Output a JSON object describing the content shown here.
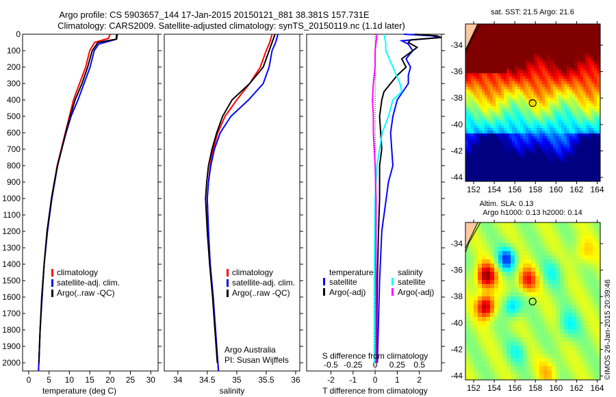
{
  "title_line1": "Argo profile: CS 5903657_144 17-Jan-2015 20150121_881 38.381S 157.731E",
  "title_line2": "Climatology: CARS2009. Satellite-adjusted climatology: synTS_20150119.nc (1.1d later)",
  "credit": "©IMOS 26-Jan-2015 20:39:46",
  "colors": {
    "climatology": "#ff0000",
    "satellite": "#0000ff",
    "argo": "#000000",
    "sal_satellite": "#00ffff",
    "sal_argo": "#ff00ff"
  },
  "chart_data": [
    {
      "type": "line",
      "id": "temperature",
      "xlabel": "temperature (deg C)",
      "ylabel": "",
      "xlim": [
        -1.5,
        31.8
      ],
      "ylim": [
        2050,
        0
      ],
      "xticks": [
        0,
        5,
        10,
        15,
        20,
        25,
        30
      ],
      "yticks": [
        0,
        100,
        200,
        300,
        400,
        500,
        600,
        700,
        800,
        900,
        1000,
        1100,
        1200,
        1300,
        1400,
        1500,
        1600,
        1700,
        1800,
        1900,
        2000
      ],
      "legend": [
        "climatology",
        "satellite-adj. clim.",
        "Argo(..raw -QC)"
      ],
      "legend_placement": "lower-center",
      "series": [
        {
          "name": "climatology",
          "color": "#ff0000",
          "depth": [
            0,
            25,
            50,
            100,
            200,
            300,
            400,
            500,
            600,
            700,
            800,
            900,
            1000,
            1200,
            1400,
            1600,
            1800,
            2000,
            2050
          ],
          "values": [
            20,
            19.6,
            16.2,
            15,
            14,
            12.5,
            11,
            10,
            9,
            8,
            7,
            6.3,
            5.6,
            4.6,
            3.8,
            3.3,
            2.8,
            2.5,
            2.4
          ]
        },
        {
          "name": "satellite-adj. clim.",
          "color": "#0000ff",
          "depth": [
            0,
            30,
            60,
            100,
            200,
            300,
            400,
            500,
            600,
            700,
            800,
            900,
            1000,
            1200,
            1400,
            1600,
            1800,
            2000,
            2050
          ],
          "values": [
            21.8,
            21.6,
            17.2,
            16.1,
            15.1,
            13.6,
            12.1,
            10.4,
            9.2,
            8.1,
            7.1,
            6.4,
            5.7,
            4.6,
            3.8,
            3.3,
            2.8,
            2.5,
            2.4
          ]
        },
        {
          "name": "Argo(..raw -QC)",
          "color": "#000000",
          "depth": [
            0,
            30,
            50,
            100,
            200,
            300,
            400,
            500,
            600,
            700,
            800,
            900,
            1000,
            1200,
            1400,
            1600,
            1800,
            2000
          ],
          "values": [
            21.6,
            21.5,
            17,
            15.6,
            14.5,
            13.1,
            11.4,
            10.2,
            9.1,
            8.1,
            7.1,
            6.3,
            5.6,
            4.5,
            3.8,
            3.2,
            2.8,
            2.5
          ]
        }
      ]
    },
    {
      "type": "line",
      "id": "salinity",
      "xlabel": "salinity",
      "xlim": [
        33.77,
        36.07
      ],
      "ylim": [
        2050,
        0
      ],
      "xticks": [
        34,
        34.5,
        35,
        35.5,
        36
      ],
      "legend": [
        "climatology",
        "satellite-adj. clim.",
        "Argo(..raw -QC)"
      ],
      "legend_placement": "lower-center",
      "annotation": [
        "Argo Australia",
        "PI: Susan Wijffels"
      ],
      "series": [
        {
          "name": "climatology",
          "color": "#ff0000",
          "depth": [
            0,
            50,
            100,
            200,
            300,
            400,
            500,
            600,
            700,
            800,
            900,
            1000,
            1200,
            1400,
            1600,
            1800,
            2000,
            2050
          ],
          "values": [
            35.6,
            35.56,
            35.5,
            35.4,
            35.22,
            35.0,
            34.8,
            34.68,
            34.6,
            34.55,
            34.52,
            34.5,
            34.52,
            34.55,
            34.6,
            34.64,
            34.68,
            34.69
          ]
        },
        {
          "name": "satellite-adj. clim.",
          "color": "#0000ff",
          "depth": [
            0,
            50,
            100,
            200,
            300,
            400,
            500,
            600,
            700,
            800,
            900,
            1000,
            1200,
            1400,
            1600,
            1800,
            2000,
            2050
          ],
          "values": [
            35.7,
            35.66,
            35.6,
            35.55,
            35.45,
            35.2,
            34.9,
            34.72,
            34.62,
            34.56,
            34.52,
            34.5,
            34.52,
            34.55,
            34.6,
            34.64,
            34.68,
            34.69
          ]
        },
        {
          "name": "Argo(..raw -QC)",
          "color": "#000000",
          "depth": [
            0,
            50,
            100,
            200,
            300,
            400,
            500,
            600,
            700,
            800,
            900,
            1000,
            1200,
            1400,
            1600,
            1800,
            2000
          ],
          "values": [
            35.65,
            35.6,
            35.55,
            35.45,
            35.22,
            34.92,
            34.76,
            34.66,
            34.58,
            34.52,
            34.49,
            34.47,
            34.5,
            34.54,
            34.59,
            34.63,
            34.67
          ]
        }
      ]
    },
    {
      "type": "line",
      "id": "differences",
      "xlabel": "T difference from climatology",
      "x2label": "S difference from climatology",
      "xlim": [
        -3.1,
        3.0
      ],
      "ylim": [
        2050,
        0
      ],
      "xticks": [
        -2,
        -1,
        0,
        1,
        2
      ],
      "xticks_labels": [
        "-2",
        "-1",
        "0",
        "1",
        "2"
      ],
      "x2ticks": [
        -0.5,
        -0.25,
        0,
        0.25,
        0.5
      ],
      "x2ticks_labels": [
        "-0.5",
        "-0.25",
        "0",
        "0.25",
        "0.5"
      ],
      "legend_temperature": {
        "title": "temperature",
        "items": [
          "satellite",
          "Argo(-adj)"
        ]
      },
      "legend_salinity": {
        "title": "salinity",
        "items": [
          "satellite",
          "Argo(-adj)"
        ]
      },
      "series": [
        {
          "name": "temperature satellite",
          "color": "#0000ff",
          "units": "T",
          "depth": [
            0,
            10,
            20,
            40,
            60,
            100,
            150,
            200,
            250,
            300,
            400,
            500,
            600,
            700,
            800,
            900,
            1000,
            1200,
            1500,
            2000
          ],
          "values": [
            1.3,
            2.6,
            2.9,
            1.2,
            1.5,
            1.7,
            1.4,
            1.6,
            1.5,
            1.5,
            1.0,
            0.8,
            0.7,
            0.75,
            0.8,
            0.6,
            0.5,
            0.3,
            0.2,
            0.1
          ]
        },
        {
          "name": "temperature Argo(-adj)",
          "color": "#000000",
          "units": "T",
          "depth": [
            0,
            10,
            20,
            35,
            50,
            80,
            120,
            150,
            200,
            250,
            300,
            350,
            400,
            500,
            600,
            700,
            800,
            1000,
            1200,
            1500,
            2000
          ],
          "values": [
            1.8,
            2.8,
            3.0,
            1.6,
            1.5,
            1.9,
            1.5,
            1.2,
            1.4,
            1.0,
            0.7,
            0.4,
            0.3,
            0.2,
            0.25,
            0.3,
            0.2,
            0.2,
            0.15,
            0.1,
            0.05
          ]
        },
        {
          "name": "salinity satellite",
          "color": "#00ffff",
          "units": "S",
          "depth": [
            0,
            50,
            100,
            200,
            300,
            350,
            400,
            500,
            600,
            700,
            800,
            1000,
            1500,
            2000
          ],
          "values": [
            0.1,
            0.12,
            0.12,
            0.2,
            0.28,
            0.3,
            0.2,
            0.15,
            0.08,
            0.05,
            0.02,
            0.0,
            -0.01,
            -0.01
          ]
        },
        {
          "name": "salinity Argo(-adj)",
          "color": "#ff00ff",
          "units": "S",
          "depth": [
            0,
            100,
            200,
            300,
            400,
            500,
            600,
            700,
            800,
            1000,
            1500,
            2000
          ],
          "values": [
            0.02,
            0.0,
            0.0,
            -0.02,
            -0.03,
            -0.02,
            -0.02,
            -0.01,
            0.0,
            0.01,
            0.01,
            0.01
          ]
        }
      ]
    },
    {
      "type": "heatmap",
      "id": "sst-map",
      "title": "sat. SST: 21.5 Argo: 21.6",
      "xlim": [
        151.2,
        164.3
      ],
      "ylim": [
        -44.3,
        -32.4
      ],
      "xticks": [
        152,
        154,
        156,
        158,
        160,
        162,
        164
      ],
      "yticks": [
        -34,
        -36,
        -38,
        -40,
        -42,
        -44
      ],
      "ytick_labels": [
        "-34",
        "-36",
        "-38",
        "-40",
        "-42",
        "-44"
      ],
      "argo_position": [
        157.731,
        -38.381
      ]
    },
    {
      "type": "heatmap",
      "id": "sla-map",
      "title_line1": "Altim. SLA: 0.13",
      "title_line2": "Argo h1000: 0.13 h2000: 0.14",
      "xlim": [
        151.2,
        164.3
      ],
      "ylim": [
        -44.3,
        -32.4
      ],
      "xticks": [
        152,
        154,
        156,
        158,
        160,
        162,
        164
      ],
      "yticks": [
        -34,
        -36,
        -38,
        -40,
        -42,
        -44
      ],
      "ytick_labels": [
        "-34",
        "-36",
        "-38",
        "-40",
        "-42",
        "-44"
      ],
      "argo_position": [
        157.731,
        -38.381
      ]
    }
  ]
}
